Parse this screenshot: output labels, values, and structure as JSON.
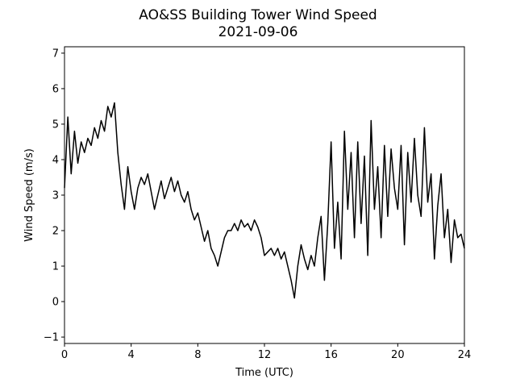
{
  "chart_data": {
    "type": "line",
    "title": "AO&SS Building Tower Wind Speed",
    "subtitle": "2021-09-06",
    "x_label": "Time (UTC)",
    "y_label": "Wind Speed (m/s)",
    "xlim": [
      0,
      24
    ],
    "ylim": [
      -1.18,
      7.18
    ],
    "xticks": [
      0,
      4,
      8,
      12,
      16,
      20,
      24
    ],
    "yticks": [
      {
        "value": -1,
        "label": "−1"
      },
      0,
      1,
      2,
      3,
      4,
      5,
      6,
      7
    ],
    "grid": false,
    "series": [
      {
        "color": "#000000",
        "x": [
          0,
          0.2,
          0.4,
          0.6,
          0.8,
          1,
          1.2,
          1.4,
          1.6,
          1.8,
          2,
          2.2,
          2.4,
          2.6,
          2.8,
          3,
          3.2,
          3.4,
          3.6,
          3.8,
          4,
          4.2,
          4.4,
          4.6,
          4.8,
          5,
          5.2,
          5.4,
          5.6,
          5.8,
          6,
          6.2,
          6.4,
          6.6,
          6.8,
          7,
          7.2,
          7.4,
          7.6,
          7.8,
          8,
          8.2,
          8.4,
          8.6,
          8.8,
          9,
          9.2,
          9.4,
          9.6,
          9.8,
          10,
          10.2,
          10.4,
          10.6,
          10.8,
          11,
          11.2,
          11.4,
          11.6,
          11.8,
          12,
          12.2,
          12.4,
          12.6,
          12.8,
          13,
          13.2,
          13.4,
          13.6,
          13.8,
          14,
          14.2,
          14.4,
          14.6,
          14.8,
          15,
          15.2,
          15.4,
          15.6,
          15.8,
          16,
          16.2,
          16.4,
          16.6,
          16.8,
          17,
          17.2,
          17.4,
          17.6,
          17.8,
          18,
          18.2,
          18.4,
          18.6,
          18.8,
          19,
          19.2,
          19.4,
          19.6,
          19.8,
          20,
          20.2,
          20.4,
          20.6,
          20.8,
          21,
          21.2,
          21.4,
          21.6,
          21.8,
          22,
          22.2,
          22.4,
          22.6,
          22.8,
          23,
          23.2,
          23.4,
          23.6,
          23.8,
          24
        ],
        "values": [
          3.2,
          5.2,
          3.6,
          4.8,
          3.9,
          4.5,
          4.2,
          4.6,
          4.4,
          4.9,
          4.6,
          5.1,
          4.8,
          5.5,
          5.2,
          5.6,
          4.2,
          3.3,
          2.6,
          3.8,
          3.1,
          2.6,
          3.2,
          3.5,
          3.3,
          3.6,
          3.1,
          2.6,
          3.0,
          3.4,
          2.9,
          3.2,
          3.5,
          3.1,
          3.4,
          3.0,
          2.8,
          3.1,
          2.6,
          2.3,
          2.5,
          2.1,
          1.7,
          2.0,
          1.5,
          1.3,
          1.0,
          1.4,
          1.8,
          2.0,
          2.0,
          2.2,
          2.0,
          2.3,
          2.1,
          2.2,
          2.0,
          2.3,
          2.1,
          1.8,
          1.3,
          1.4,
          1.5,
          1.3,
          1.5,
          1.2,
          1.4,
          1.0,
          0.6,
          0.1,
          1.0,
          1.6,
          1.2,
          0.9,
          1.3,
          1.0,
          1.8,
          2.4,
          0.6,
          2.2,
          4.5,
          1.5,
          2.8,
          1.2,
          4.8,
          2.6,
          4.2,
          1.8,
          4.5,
          2.2,
          4.1,
          1.3,
          5.1,
          2.6,
          3.8,
          1.8,
          4.4,
          2.4,
          4.3,
          3.2,
          2.6,
          4.4,
          1.6,
          4.2,
          2.8,
          4.6,
          3.0,
          2.4,
          4.9,
          2.8,
          3.6,
          1.2,
          2.7,
          3.6,
          1.8,
          2.6,
          1.1,
          2.3,
          1.8,
          1.9,
          1.5
        ]
      }
    ]
  }
}
